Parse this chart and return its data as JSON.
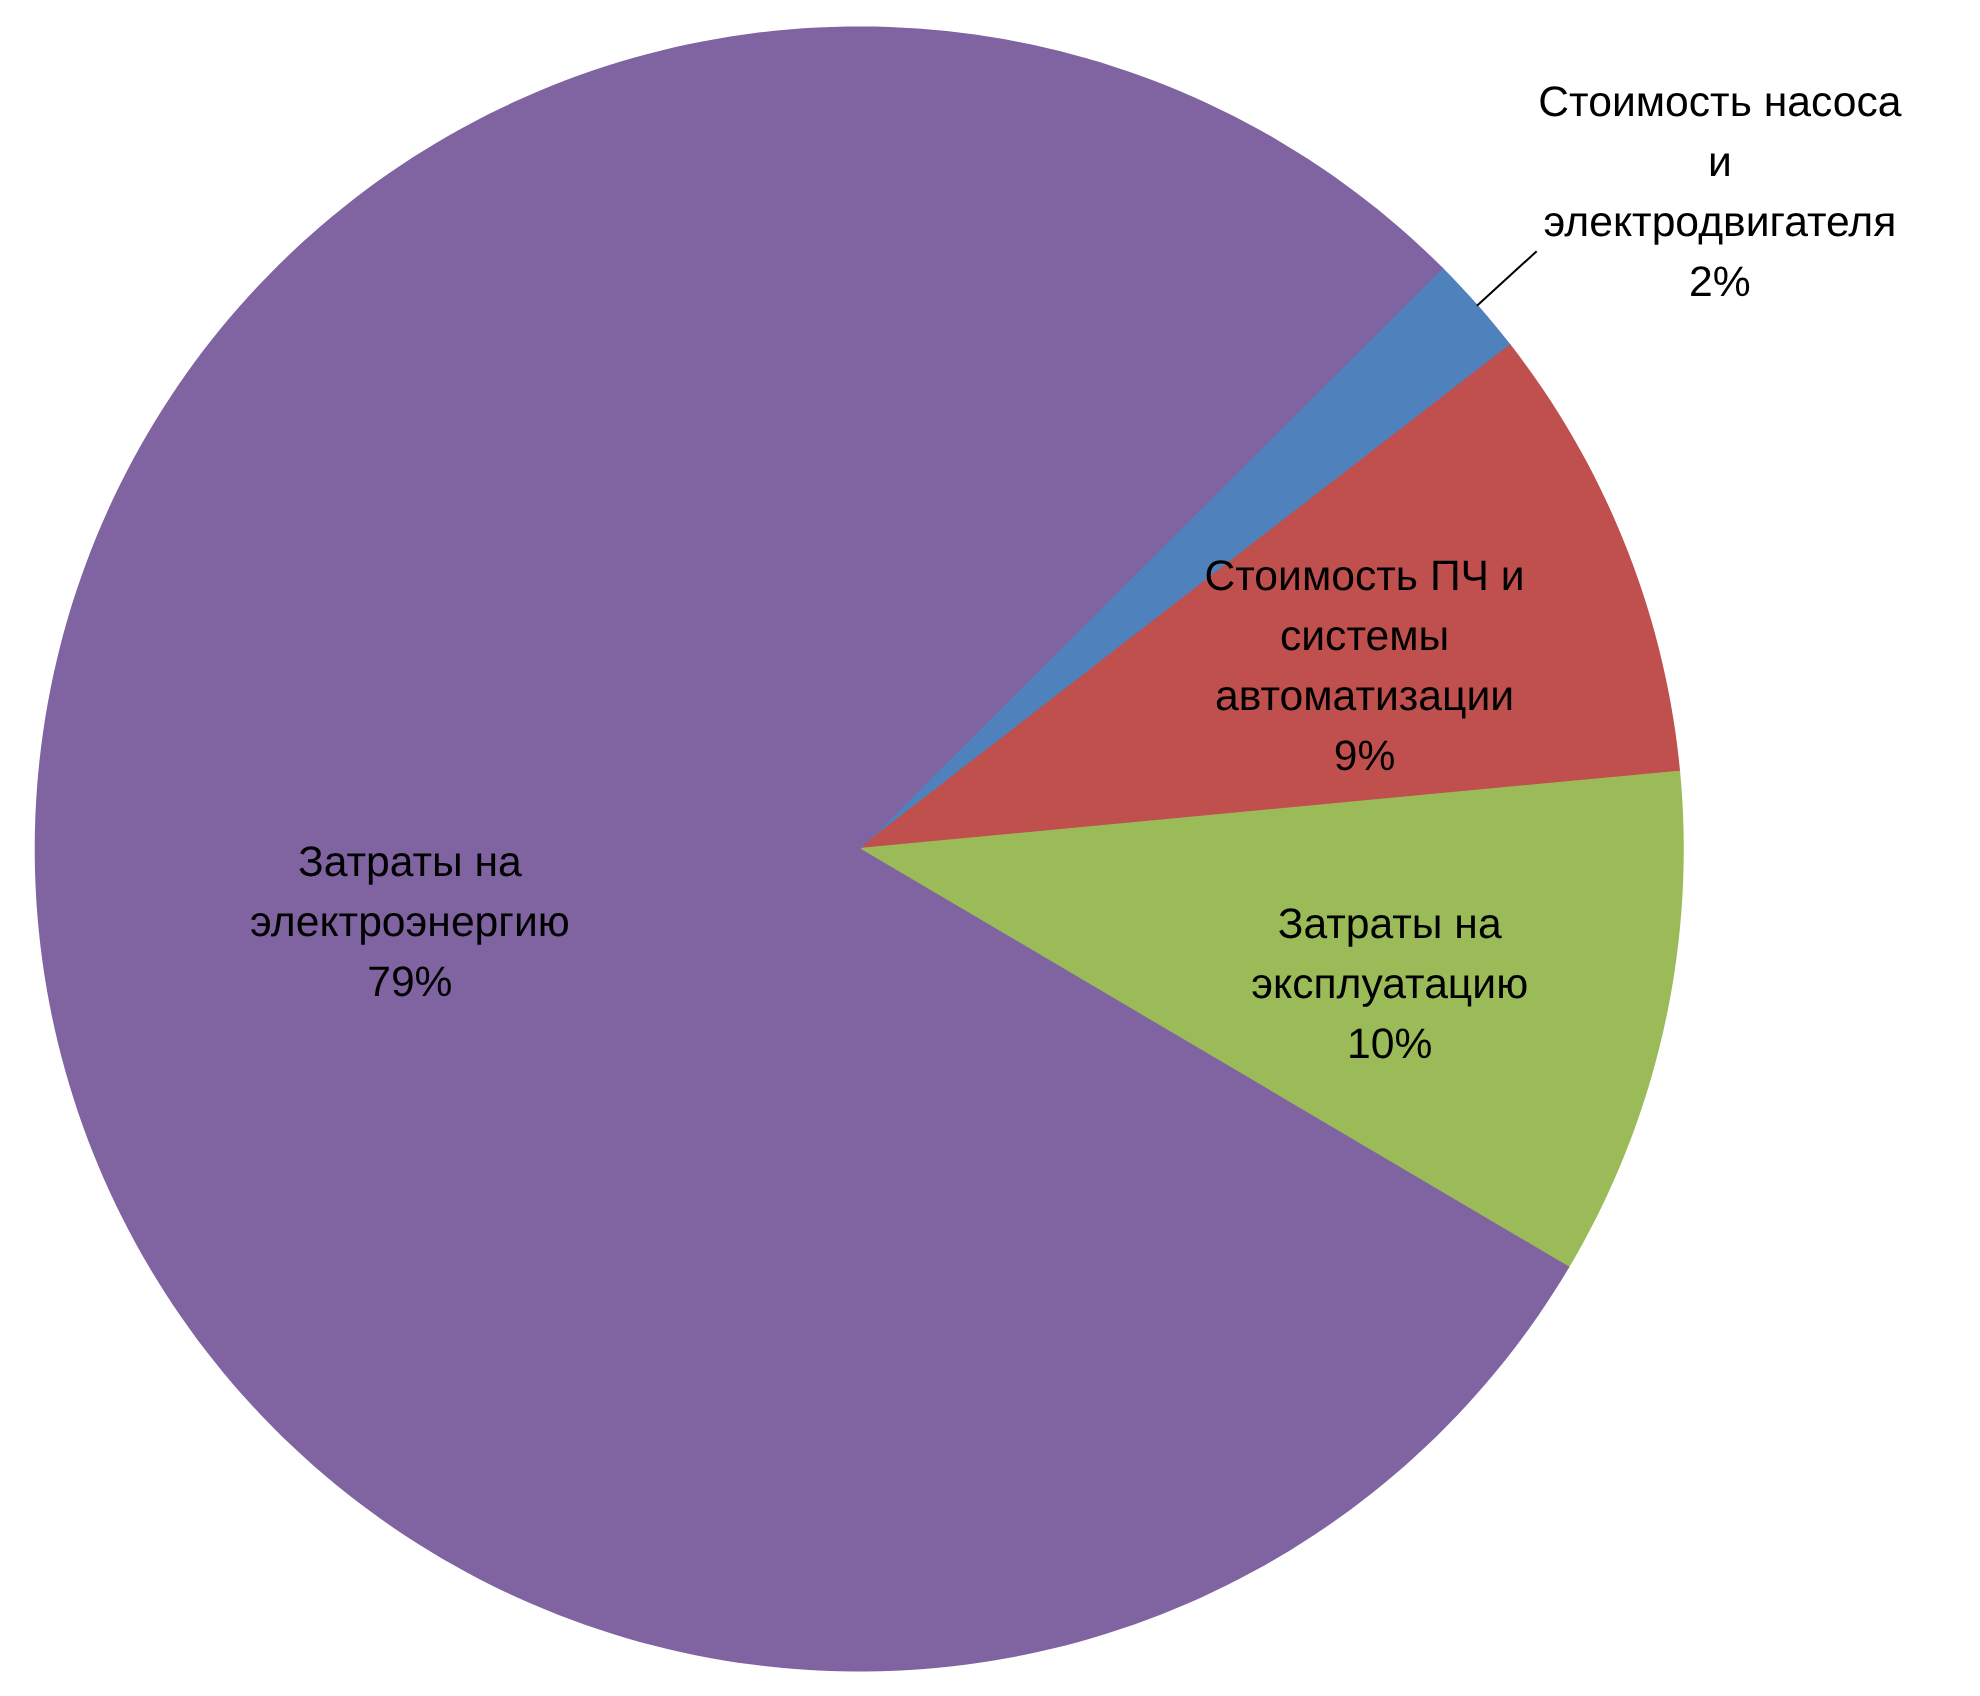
{
  "chart_data": {
    "type": "pie",
    "categories": [
      "Стоимость насоса и электродвигателя",
      "Стоимость ПЧ и системы автоматизации",
      "Затраты на эксплуатацию",
      "Затраты на электроэнергию"
    ],
    "values": [
      2,
      9,
      10,
      79
    ],
    "value_labels": [
      "2%",
      "9%",
      "10%",
      "79%"
    ],
    "colors": [
      "#4f81bd",
      "#c0504d",
      "#9bbb59",
      "#8064a2"
    ]
  }
}
